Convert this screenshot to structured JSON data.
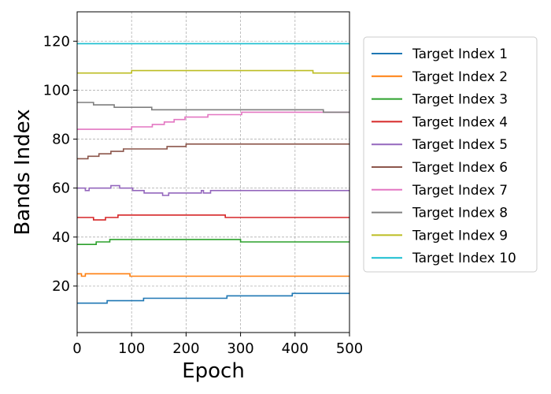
{
  "chart_data": {
    "type": "line",
    "title": "",
    "xlabel": "Epoch",
    "ylabel": "Bands Index",
    "xlim": [
      0,
      500
    ],
    "ylim": [
      1,
      132
    ],
    "xticks": [
      0,
      100,
      200,
      300,
      400,
      500
    ],
    "yticks": [
      20,
      40,
      60,
      80,
      100,
      120
    ],
    "grid": true,
    "legend_position": "outside-right",
    "series": [
      {
        "name": "Target Index 1",
        "color": "#1f77b4",
        "points": [
          [
            0,
            13
          ],
          [
            55,
            13
          ],
          [
            55,
            14
          ],
          [
            122,
            14
          ],
          [
            122,
            15
          ],
          [
            275,
            15
          ],
          [
            275,
            16
          ],
          [
            395,
            16
          ],
          [
            395,
            17
          ],
          [
            500,
            17
          ]
        ]
      },
      {
        "name": "Target Index 2",
        "color": "#ff7f0e",
        "points": [
          [
            0,
            25
          ],
          [
            8,
            25
          ],
          [
            8,
            24
          ],
          [
            15,
            24
          ],
          [
            15,
            25
          ],
          [
            97,
            25
          ],
          [
            97,
            24
          ],
          [
            500,
            24
          ]
        ]
      },
      {
        "name": "Target Index 3",
        "color": "#2ca02c",
        "points": [
          [
            0,
            37
          ],
          [
            35,
            37
          ],
          [
            35,
            38
          ],
          [
            60,
            38
          ],
          [
            60,
            39
          ],
          [
            300,
            39
          ],
          [
            300,
            38
          ],
          [
            500,
            38
          ]
        ]
      },
      {
        "name": "Target Index 4",
        "color": "#d62728",
        "points": [
          [
            0,
            48
          ],
          [
            30,
            48
          ],
          [
            30,
            47
          ],
          [
            52,
            47
          ],
          [
            52,
            48
          ],
          [
            75,
            48
          ],
          [
            75,
            49
          ],
          [
            272,
            49
          ],
          [
            272,
            48
          ],
          [
            500,
            48
          ]
        ]
      },
      {
        "name": "Target Index 5",
        "color": "#9467bd",
        "points": [
          [
            0,
            60
          ],
          [
            15,
            60
          ],
          [
            15,
            59
          ],
          [
            22,
            59
          ],
          [
            22,
            60
          ],
          [
            62,
            60
          ],
          [
            62,
            61
          ],
          [
            78,
            61
          ],
          [
            78,
            60
          ],
          [
            102,
            60
          ],
          [
            102,
            59
          ],
          [
            123,
            59
          ],
          [
            123,
            58
          ],
          [
            157,
            58
          ],
          [
            157,
            57
          ],
          [
            168,
            57
          ],
          [
            168,
            58
          ],
          [
            228,
            58
          ],
          [
            228,
            59
          ],
          [
            232,
            59
          ],
          [
            232,
            58
          ],
          [
            245,
            58
          ],
          [
            245,
            59
          ],
          [
            500,
            59
          ]
        ]
      },
      {
        "name": "Target Index 6",
        "color": "#8c564b",
        "points": [
          [
            0,
            72
          ],
          [
            20,
            72
          ],
          [
            20,
            73
          ],
          [
            40,
            73
          ],
          [
            40,
            74
          ],
          [
            62,
            74
          ],
          [
            62,
            75
          ],
          [
            85,
            75
          ],
          [
            85,
            76
          ],
          [
            165,
            76
          ],
          [
            165,
            77
          ],
          [
            200,
            77
          ],
          [
            200,
            78
          ],
          [
            500,
            78
          ]
        ]
      },
      {
        "name": "Target Index 7",
        "color": "#e377c2",
        "points": [
          [
            0,
            84
          ],
          [
            100,
            84
          ],
          [
            100,
            85
          ],
          [
            138,
            85
          ],
          [
            138,
            86
          ],
          [
            160,
            86
          ],
          [
            160,
            87
          ],
          [
            178,
            87
          ],
          [
            178,
            88
          ],
          [
            198,
            88
          ],
          [
            198,
            89
          ],
          [
            240,
            89
          ],
          [
            240,
            90
          ],
          [
            302,
            90
          ],
          [
            302,
            91
          ],
          [
            500,
            91
          ]
        ]
      },
      {
        "name": "Target Index 8",
        "color": "#7f7f7f",
        "points": [
          [
            0,
            95
          ],
          [
            30,
            95
          ],
          [
            30,
            94
          ],
          [
            68,
            94
          ],
          [
            68,
            93
          ],
          [
            137,
            93
          ],
          [
            137,
            92
          ],
          [
            452,
            92
          ],
          [
            452,
            91
          ],
          [
            500,
            91
          ]
        ]
      },
      {
        "name": "Target Index 9",
        "color": "#bcbd22",
        "points": [
          [
            0,
            107
          ],
          [
            100,
            107
          ],
          [
            100,
            108
          ],
          [
            433,
            108
          ],
          [
            433,
            107
          ],
          [
            500,
            107
          ]
        ]
      },
      {
        "name": "Target Index 10",
        "color": "#17becf",
        "points": [
          [
            0,
            119
          ],
          [
            500,
            119
          ]
        ]
      }
    ]
  }
}
